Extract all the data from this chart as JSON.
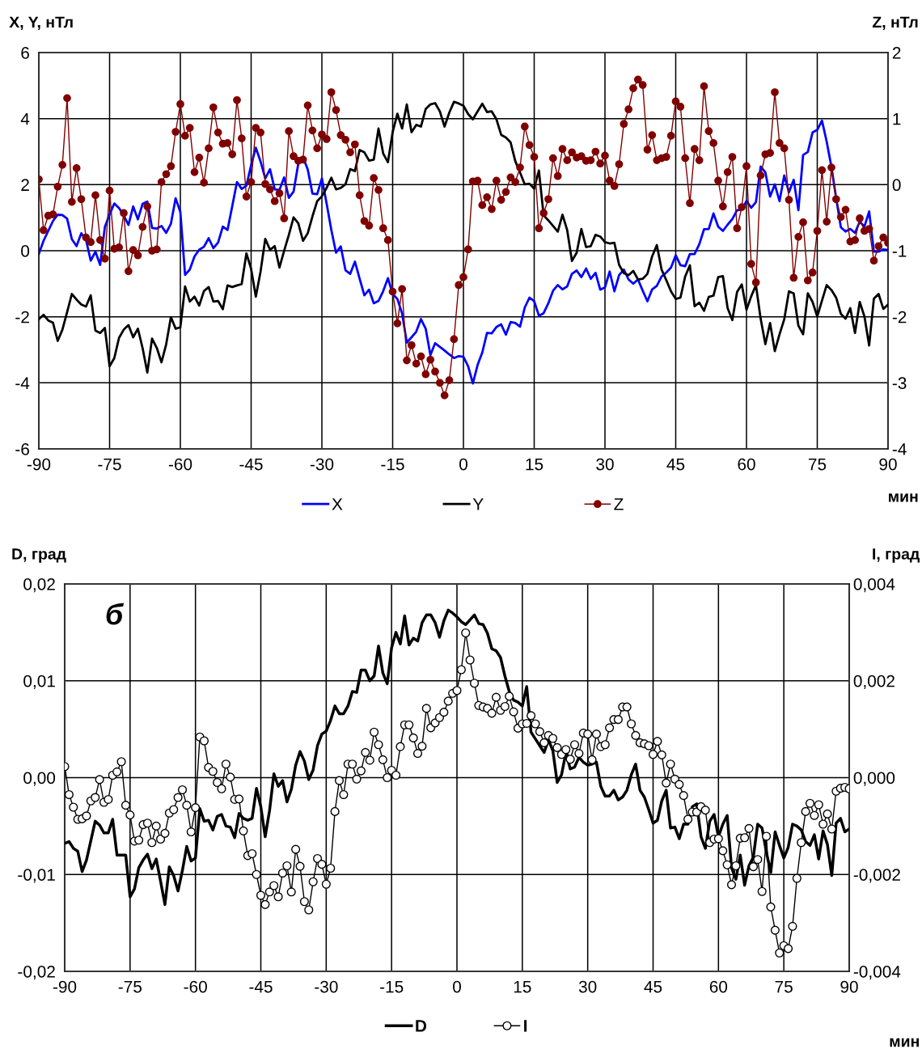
{
  "chart_data": [
    {
      "type": "line",
      "ylabel": "X, Y, нТл",
      "y2label": "Z, нТл",
      "xlabel": "мин",
      "x": [
        -90,
        -89,
        -88,
        -87,
        -86,
        -85,
        -84,
        -83,
        -82,
        -81,
        -80,
        -79,
        -78,
        -77,
        -76,
        -75,
        -74,
        -73,
        -72,
        -71,
        -70,
        -69,
        -68,
        -67,
        -66,
        -65,
        -64,
        -63,
        -62,
        -61,
        -60,
        -59,
        -58,
        -57,
        -56,
        -55,
        -54,
        -53,
        -52,
        -51,
        -50,
        -49,
        -48,
        -47,
        -46,
        -45,
        -44,
        -43,
        -42,
        -41,
        -40,
        -39,
        -38,
        -37,
        -36,
        -35,
        -34,
        -33,
        -32,
        -31,
        -30,
        -29,
        -28,
        -27,
        -26,
        -25,
        -24,
        -23,
        -22,
        -21,
        -20,
        -19,
        -18,
        -17,
        -16,
        -15,
        -14,
        -13,
        -12,
        -11,
        -10,
        -9,
        -8,
        -7,
        -6,
        -5,
        -4,
        -3,
        -2,
        -1,
        0,
        1,
        2,
        3,
        4,
        5,
        6,
        7,
        8,
        9,
        10,
        11,
        12,
        13,
        14,
        15,
        16,
        17,
        18,
        19,
        20,
        21,
        22,
        23,
        24,
        25,
        26,
        27,
        28,
        29,
        30,
        31,
        32,
        33,
        34,
        35,
        36,
        37,
        38,
        39,
        40,
        41,
        42,
        43,
        44,
        45,
        46,
        47,
        48,
        49,
        50,
        51,
        52,
        53,
        54,
        55,
        56,
        57,
        58,
        59,
        60,
        61,
        62,
        63,
        64,
        65,
        66,
        67,
        68,
        69,
        70,
        71,
        72,
        73,
        74,
        75,
        76,
        77,
        78,
        79,
        80,
        81,
        82,
        83,
        84,
        85,
        86,
        87,
        88,
        89,
        90
      ],
      "series": [
        {
          "name": "X",
          "color": "#0000ff",
          "values": [
            -0.1,
            0.3,
            0.6,
            0.9,
            1.09,
            1.08,
            0.97,
            0.35,
            0.14,
            0.53,
            0.33,
            -0.3,
            -0.03,
            -0.43,
            0.72,
            1.1,
            1.43,
            1.29,
            1.07,
            0.78,
            1.34,
            0.95,
            1.42,
            1.49,
            0.69,
            0.67,
            0.75,
            0.54,
            0.82,
            1.59,
            1.17,
            -0.73,
            -0.57,
            -0.17,
            0.03,
            0.12,
            0.38,
            0.08,
            0.25,
            0.73,
            0.63,
            1.35,
            2.08,
            1.87,
            1.97,
            2.59,
            3.12,
            2.7,
            2.19,
            2.47,
            1.86,
            1.84,
            2.22,
            1.6,
            1.79,
            2.64,
            2.83,
            2.46,
            1.73,
            1.71,
            2.19,
            1.43,
            0.63,
            -0.06,
            0.13,
            -0.59,
            -0.7,
            -0.33,
            -0.85,
            -1.35,
            -1.18,
            -1.59,
            -1.52,
            -1.22,
            -0.83,
            -1.31,
            -1.46,
            -1.9,
            -2.78,
            -2.62,
            -2.45,
            -2.07,
            -2.36,
            -3.16,
            -2.8,
            -2.91,
            -3.02,
            -3.14,
            -3.25,
            -3.19,
            -3.21,
            -3.5,
            -4.02,
            -3.46,
            -3.08,
            -2.49,
            -2.5,
            -2.31,
            -2.23,
            -2.54,
            -2.16,
            -2.19,
            -2.3,
            -1.72,
            -1.42,
            -1.53,
            -1.97,
            -1.89,
            -1.59,
            -1.21,
            -1.04,
            -1.17,
            -1.08,
            -0.7,
            -0.6,
            -0.8,
            -0.54,
            -0.85,
            -0.67,
            -1.18,
            -1.11,
            -0.63,
            -1.23,
            -0.74,
            -0.57,
            -0.87,
            -1.0,
            -0.87,
            -1.21,
            -1.53,
            -1.17,
            -1.06,
            -0.78,
            -0.66,
            -0.51,
            -0.14,
            -0.44,
            -0.47,
            -0.1,
            -0.1,
            0.2,
            0.65,
            0.66,
            1.13,
            0.73,
            0.6,
            0.79,
            0.96,
            1.23,
            1.24,
            1.51,
            1.3,
            1.47,
            2.55,
            2.37,
            1.64,
            2.01,
            1.5,
            2.28,
            1.77,
            2.15,
            1.23,
            2.9,
            2.99,
            3.58,
            3.66,
            3.94,
            3.3,
            2.54,
            1.6,
            0.71,
            0.58,
            0.66,
            0.54,
            0.88,
            0.73,
            1.19,
            -0.03,
            -0.03,
            0.04,
            0.02
          ]
        },
        {
          "name": "Y",
          "color": "#000000",
          "values": [
            -2.07,
            -1.94,
            -2.11,
            -2.18,
            -2.73,
            -2.39,
            -1.86,
            -1.31,
            -1.48,
            -1.63,
            -1.69,
            -1.35,
            -2.42,
            -2.49,
            -2.34,
            -3.5,
            -3.25,
            -2.64,
            -2.39,
            -2.25,
            -2.62,
            -2.36,
            -2.95,
            -3.69,
            -2.66,
            -2.94,
            -3.38,
            -2.83,
            -2.01,
            -2.36,
            -2.32,
            -1.08,
            -1.54,
            -1.39,
            -1.66,
            -1.22,
            -1.1,
            -1.54,
            -1.52,
            -1.77,
            -1.05,
            -1.1,
            -1.05,
            -1.01,
            -0.08,
            -0.55,
            -1.39,
            -0.63,
            0.36,
            0.03,
            0.14,
            -0.51,
            0.0,
            0.48,
            1.01,
            0.83,
            0.3,
            0.53,
            1.04,
            1.5,
            1.65,
            1.9,
            2.21,
            1.86,
            1.9,
            2.01,
            2.47,
            2.41,
            3.05,
            2.98,
            2.73,
            2.76,
            3.7,
            2.94,
            2.68,
            3.59,
            4.15,
            3.7,
            4.43,
            3.59,
            3.81,
            3.76,
            4.29,
            4.43,
            4.47,
            4.22,
            3.76,
            4.18,
            4.51,
            4.46,
            4.39,
            4.14,
            3.98,
            4.22,
            4.45,
            4.2,
            4.22,
            3.98,
            3.51,
            3.43,
            3.28,
            2.71,
            2.37,
            2.01,
            2.03,
            1.88,
            2.43,
            1.07,
            0.92,
            0.75,
            0.58,
            1.09,
            0.62,
            -0.31,
            -0.06,
            0.66,
            0.11,
            0.14,
            0.48,
            0.43,
            0.26,
            0.22,
            0.24,
            -0.43,
            -0.68,
            -0.74,
            -0.61,
            -0.87,
            -0.85,
            -0.7,
            -0.17,
            0.17,
            -0.57,
            -0.89,
            -1.23,
            -1.46,
            -1.42,
            -0.78,
            -0.44,
            -1.68,
            -1.57,
            -1.82,
            -1.4,
            -1.36,
            -0.8,
            -0.77,
            -1.74,
            -2.1,
            -1.25,
            -1.02,
            -1.79,
            -1.38,
            -1.04,
            -2.06,
            -2.83,
            -2.19,
            -3.04,
            -2.53,
            -2.08,
            -1.23,
            -1.29,
            -2.27,
            -2.53,
            -1.29,
            -1.55,
            -1.99,
            -1.51,
            -1.04,
            -1.19,
            -1.42,
            -1.91,
            -2.06,
            -1.74,
            -2.49,
            -1.55,
            -1.99,
            -2.87,
            -1.45,
            -1.31,
            -1.76,
            -1.63
          ]
        },
        {
          "name": "Z",
          "color": "#800000",
          "axis": "y2",
          "marker": "circle",
          "values": [
            0.08,
            -0.69,
            -0.47,
            -0.45,
            -0.03,
            0.3,
            1.31,
            -0.26,
            0.25,
            -0.22,
            -0.8,
            -0.87,
            -0.16,
            -0.84,
            -1.12,
            -0.09,
            -0.97,
            -0.95,
            -0.43,
            -1.31,
            -0.99,
            -1.07,
            -0.64,
            -0.33,
            -1.0,
            -0.98,
            0.04,
            0.16,
            0.28,
            0.8,
            1.22,
            0.74,
            0.86,
            0.19,
            0.41,
            0.03,
            0.55,
            1.17,
            0.79,
            0.62,
            0.63,
            0.46,
            1.28,
            0.7,
            -0.18,
            0.04,
            0.86,
            0.79,
            0.01,
            -0.07,
            -0.25,
            -0.13,
            -0.51,
            0.81,
            0.43,
            0.36,
            0.38,
            1.2,
            0.82,
            0.55,
            0.76,
            0.69,
            1.4,
            1.13,
            0.75,
            0.68,
            0.49,
            0.61,
            -0.16,
            -0.55,
            -0.62,
            0.1,
            -0.08,
            -0.66,
            -0.84,
            -1.62,
            -2.1,
            -1.58,
            -2.66,
            -2.43,
            -2.71,
            -2.6,
            -2.87,
            -2.65,
            -2.83,
            -3.0,
            -3.19,
            -2.96,
            -2.34,
            -1.52,
            -1.4,
            -0.98,
            0.05,
            0.06,
            -0.31,
            -0.19,
            -0.37,
            0.06,
            -0.23,
            -0.11,
            0.11,
            0.04,
            0.26,
            0.88,
            0.6,
            0.42,
            -0.66,
            -0.43,
            -0.22,
            0.4,
            0.13,
            0.54,
            0.37,
            0.49,
            0.41,
            0.43,
            0.36,
            0.37,
            0.5,
            0.32,
            0.44,
            0.06,
            -0.02,
            0.31,
            0.92,
            1.14,
            1.46,
            1.59,
            1.51,
            0.53,
            0.75,
            0.37,
            0.4,
            0.42,
            0.74,
            1.26,
            1.18,
            0.4,
            -0.28,
            0.54,
            0.37,
            1.49,
            0.81,
            0.63,
            0.06,
            -0.33,
            0.19,
            0.42,
            -0.66,
            -0.34,
            0.28,
            -1.2,
            -1.48,
            0.14,
            0.46,
            0.48,
            1.4,
            0.63,
            0.55,
            -0.23,
            -1.41,
            -0.79,
            -0.57,
            -1.45,
            -1.33,
            -0.7,
            0.22,
            -0.56,
            0.26,
            -0.22,
            -0.49,
            -0.38,
            -0.86,
            -0.84,
            -0.51,
            -0.7,
            -0.67,
            -1.15,
            -0.93,
            -0.8,
            -0.88
          ]
        }
      ],
      "xlim": [
        -90,
        90
      ],
      "xticks": [
        -90,
        -75,
        -60,
        -45,
        -30,
        -15,
        0,
        15,
        30,
        45,
        60,
        75,
        90
      ],
      "ylim": [
        -6,
        6
      ],
      "yticks": [
        -6,
        -4,
        -2,
        0,
        2,
        4,
        6
      ],
      "y2lim": [
        -4,
        2
      ],
      "y2ticks": [
        -4,
        -3,
        -2,
        -1,
        0,
        1,
        2
      ],
      "grid": true,
      "legend": "bottom"
    },
    {
      "type": "line",
      "ylabel": "D, град",
      "y2label": "I, град",
      "xlabel": "мин",
      "annotations": [
        "б"
      ],
      "x": [
        -90,
        -89,
        -88,
        -87,
        -86,
        -85,
        -84,
        -83,
        -82,
        -81,
        -80,
        -79,
        -78,
        -77,
        -76,
        -75,
        -74,
        -73,
        -72,
        -71,
        -70,
        -69,
        -68,
        -67,
        -66,
        -65,
        -64,
        -63,
        -62,
        -61,
        -60,
        -59,
        -58,
        -57,
        -56,
        -55,
        -54,
        -53,
        -52,
        -51,
        -50,
        -49,
        -48,
        -47,
        -46,
        -45,
        -44,
        -43,
        -42,
        -41,
        -40,
        -39,
        -38,
        -37,
        -36,
        -35,
        -34,
        -33,
        -32,
        -31,
        -30,
        -29,
        -28,
        -27,
        -26,
        -25,
        -24,
        -23,
        -22,
        -21,
        -20,
        -19,
        -18,
        -17,
        -16,
        -15,
        -14,
        -13,
        -12,
        -11,
        -10,
        -9,
        -8,
        -7,
        -6,
        -5,
        -4,
        -3,
        -2,
        -1,
        0,
        1,
        2,
        3,
        4,
        5,
        6,
        7,
        8,
        9,
        10,
        11,
        12,
        13,
        14,
        15,
        16,
        17,
        18,
        19,
        20,
        21,
        22,
        23,
        24,
        25,
        26,
        27,
        28,
        29,
        30,
        31,
        32,
        33,
        34,
        35,
        36,
        37,
        38,
        39,
        40,
        41,
        42,
        43,
        44,
        45,
        46,
        47,
        48,
        49,
        50,
        51,
        52,
        53,
        54,
        55,
        56,
        57,
        58,
        59,
        60,
        61,
        62,
        63,
        64,
        65,
        66,
        67,
        68,
        69,
        70,
        71,
        72,
        73,
        74,
        75,
        76,
        77,
        78,
        79,
        80,
        81,
        82,
        83,
        84,
        85,
        86,
        87,
        88,
        89,
        90
      ],
      "series": [
        {
          "name": "D",
          "color": "#000000",
          "values": [
            -0.0068,
            -0.0066,
            -0.0073,
            -0.0076,
            -0.0097,
            -0.0085,
            -0.0065,
            -0.0045,
            -0.0049,
            -0.0057,
            -0.0057,
            -0.0043,
            -0.008,
            -0.008,
            -0.008,
            -0.0123,
            -0.0115,
            -0.0093,
            -0.0085,
            -0.0079,
            -0.0094,
            -0.0084,
            -0.0107,
            -0.0131,
            -0.0092,
            -0.0101,
            -0.0117,
            -0.0096,
            -0.0071,
            -0.0086,
            -0.0083,
            -0.0032,
            -0.0045,
            -0.0044,
            -0.0054,
            -0.004,
            -0.0038,
            -0.005,
            -0.0051,
            -0.0062,
            -0.0037,
            -0.0042,
            -0.0044,
            -0.0042,
            -0.0011,
            -0.003,
            -0.0061,
            -0.0034,
            0.0004,
            -0.0009,
            -0.0003,
            -0.0025,
            -0.0012,
            0.0013,
            0.0027,
            0.0017,
            -0.0002,
            0.0008,
            0.0033,
            0.0045,
            0.0048,
            0.0059,
            0.0074,
            0.0066,
            0.0066,
            0.0074,
            0.0089,
            0.0088,
            0.0111,
            0.0111,
            0.01,
            0.0105,
            0.0136,
            0.0108,
            0.0097,
            0.0134,
            0.015,
            0.0138,
            0.0167,
            0.0137,
            0.0144,
            0.0141,
            0.016,
            0.0168,
            0.0168,
            0.016,
            0.0145,
            0.0162,
            0.0173,
            0.017,
            0.0166,
            0.0161,
            0.0158,
            0.0163,
            0.0168,
            0.0159,
            0.0158,
            0.0149,
            0.0133,
            0.0131,
            0.0124,
            0.0105,
            0.0089,
            0.008,
            0.0078,
            0.0074,
            0.0094,
            0.0047,
            0.004,
            0.0033,
            0.0026,
            0.0039,
            0.0028,
            -0.0005,
            0.0003,
            0.0026,
            0.0009,
            0.0011,
            0.0021,
            0.0016,
            0.0013,
            0.0014,
            0.0016,
            -0.0009,
            -0.0019,
            -0.0019,
            -0.0013,
            -0.0023,
            -0.002,
            -0.0013,
            0.0003,
            0.0014,
            -0.0013,
            -0.002,
            -0.0033,
            -0.0047,
            -0.0044,
            -0.0024,
            -0.0013,
            -0.0052,
            -0.0051,
            -0.0063,
            -0.0048,
            -0.0048,
            -0.003,
            -0.0027,
            -0.0061,
            -0.0073,
            -0.0045,
            -0.0038,
            -0.0061,
            -0.0048,
            -0.0039,
            -0.0093,
            -0.0105,
            -0.008,
            -0.0111,
            -0.0091,
            -0.0082,
            -0.0048,
            -0.0052,
            -0.0077,
            -0.0098,
            -0.0056,
            -0.007,
            -0.0083,
            -0.0072,
            -0.0048,
            -0.005,
            -0.0054,
            -0.0066,
            -0.007,
            -0.0059,
            -0.0084,
            -0.0055,
            -0.0069,
            -0.0101,
            -0.0047,
            -0.0042,
            -0.0056,
            -0.0053
          ]
        },
        {
          "name": "I",
          "color": "#000000",
          "axis": "y2",
          "marker": "circle",
          "values": [
            0.00023,
            -0.00035,
            -0.00061,
            -0.00086,
            -0.00085,
            -0.00079,
            -0.00048,
            -0.00041,
            -4e-05,
            -0.00051,
            -0.00045,
            5e-05,
            0.00012,
            0.00033,
            -0.00057,
            -0.00077,
            -0.00131,
            -0.00129,
            -0.00097,
            -0.00094,
            -0.00134,
            -0.001,
            -0.00127,
            -0.00115,
            -0.00073,
            -0.00066,
            -0.00041,
            -0.00025,
            -0.00057,
            -0.00112,
            -0.00062,
            0.00084,
            0.00076,
            0.00021,
            0.00013,
            -0.0001,
            -0.00023,
            0.00028,
            1e-05,
            -0.00045,
            -0.00044,
            -0.0011,
            -0.00161,
            -0.00157,
            -0.002,
            -0.00243,
            -0.00262,
            -0.00236,
            -0.00223,
            -0.00246,
            -0.00197,
            -0.00182,
            -0.00236,
            -0.00148,
            -0.00183,
            -0.00256,
            -0.00273,
            -0.00215,
            -0.00167,
            -0.00179,
            -0.0022,
            -0.00187,
            -0.0007,
            -6e-05,
            -0.00035,
            0.00028,
            0.00028,
            -3e-05,
            0.00014,
            0.00052,
            0.00036,
            0.00094,
            0.00068,
            0.00037,
            0.0,
            0.00015,
            5e-05,
            0.00064,
            0.00109,
            0.00109,
            0.00082,
            0.0005,
            0.00065,
            0.00143,
            0.00103,
            0.00113,
            0.00124,
            0.00135,
            0.00158,
            0.00174,
            0.0018,
            0.00223,
            0.00299,
            0.00243,
            0.00195,
            0.00149,
            0.00146,
            0.00143,
            0.00133,
            0.00166,
            0.00139,
            0.00147,
            0.00168,
            0.00136,
            0.00102,
            0.00111,
            0.00112,
            0.00128,
            0.00111,
            0.00095,
            0.00072,
            0.00087,
            0.00081,
            0.00062,
            0.00048,
            0.00058,
            0.00038,
            0.00068,
            0.0005,
            0.00092,
            0.0009,
            0.00037,
            0.0009,
            0.00064,
            0.00068,
            0.00103,
            0.0012,
            0.0012,
            0.00146,
            0.00146,
            0.00111,
            0.00087,
            0.00072,
            0.0007,
            0.00066,
            0.00048,
            0.00075,
            0.00047,
            -0.00011,
            0.00028,
            -3e-05,
            -0.00014,
            -0.00037,
            -0.00086,
            -0.00071,
            -0.00071,
            -0.0006,
            -0.00067,
            -0.00134,
            -0.00127,
            -0.00126,
            -0.00151,
            -0.0018,
            -0.00221,
            -0.00182,
            -0.00125,
            -0.00124,
            -0.00105,
            -0.00184,
            -0.00169,
            -0.00235,
            -0.00121,
            -0.00267,
            -0.00315,
            -0.00362,
            -0.00347,
            -0.00353,
            -0.00307,
            -0.00208,
            -0.00134,
            -0.0007,
            -0.00053,
            -0.00078,
            -0.00056,
            -0.00096,
            -0.00075,
            -0.00106,
            -0.00028,
            -0.00022,
            -0.0002,
            -0.00023
          ]
        }
      ],
      "xlim": [
        -90,
        90
      ],
      "xticks": [
        -90,
        -75,
        -60,
        -45,
        -30,
        -15,
        0,
        15,
        30,
        45,
        60,
        75,
        90
      ],
      "ylim": [
        -0.02,
        0.02
      ],
      "yticks": [
        {
          "value": -0.02,
          "label": "-0,02"
        },
        {
          "value": -0.01,
          "label": "-0,01"
        },
        {
          "value": 0,
          "label": "0,00"
        },
        {
          "value": 0.01,
          "label": "0,01"
        },
        {
          "value": 0.02,
          "label": "0,02"
        }
      ],
      "y2lim": [
        -0.004,
        0.004
      ],
      "y2ticks": [
        {
          "value": -0.004,
          "label": "-0,004"
        },
        {
          "value": -0.002,
          "label": "-0,002"
        },
        {
          "value": 0,
          "label": "0,000"
        },
        {
          "value": 0.002,
          "label": "0,002"
        },
        {
          "value": 0.004,
          "label": "0,004"
        }
      ],
      "grid": true,
      "legend": "bottom"
    }
  ]
}
